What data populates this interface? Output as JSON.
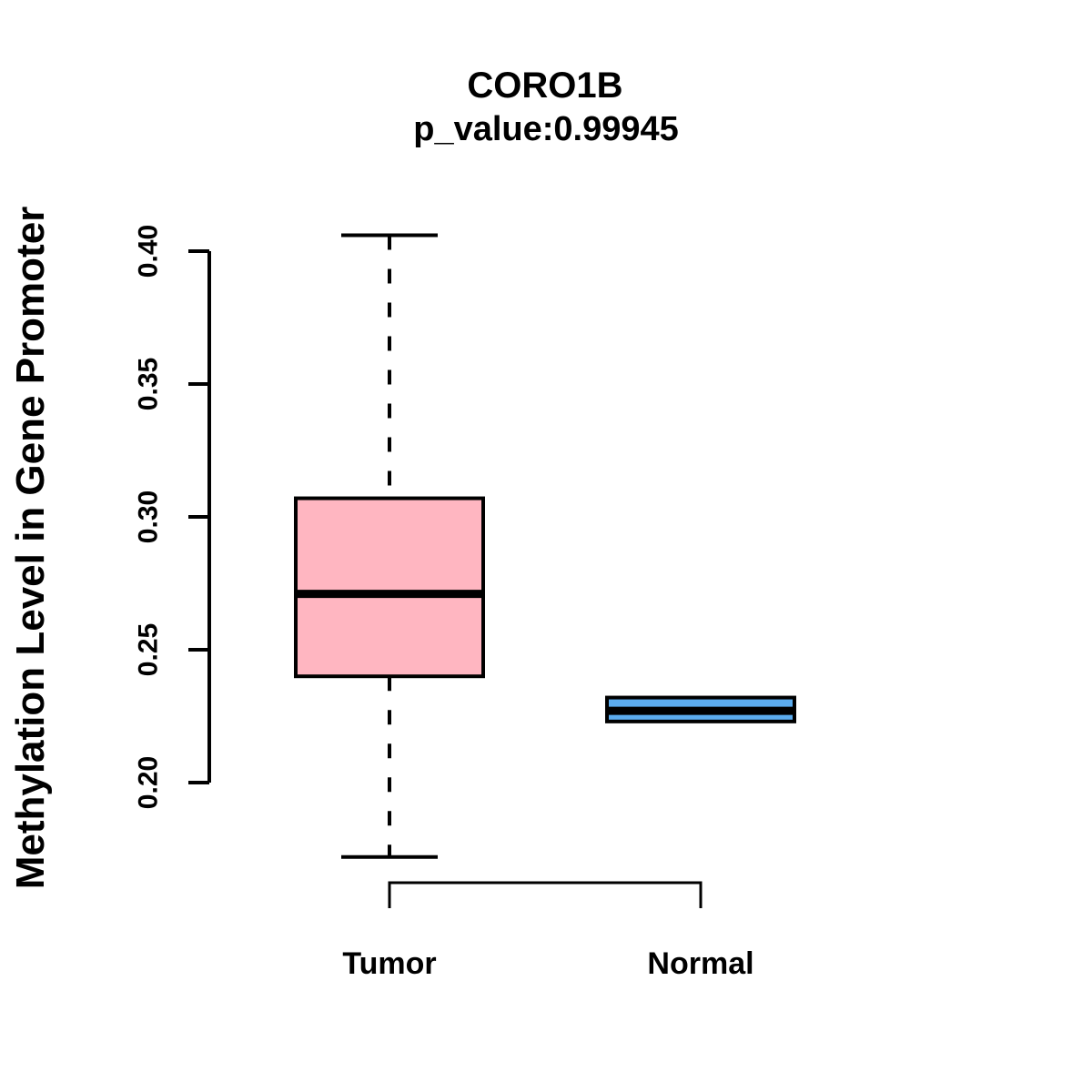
{
  "page": {
    "background_color": "#ffffff",
    "text_color": "#000000"
  },
  "chart_data": {
    "type": "boxplot",
    "title": "CORO1B",
    "subtitle": "p_value:0.99945",
    "p_value": "0.99945",
    "gene": "CORO1B",
    "xlabel": "",
    "ylabel": "Methylation Level in Gene Promoter",
    "ylim": [
      0.2,
      0.4
    ],
    "yticks": [
      0.2,
      0.25,
      0.3,
      0.35,
      0.4
    ],
    "ytick_labels": [
      "0.20",
      "0.25",
      "0.30",
      "0.35",
      "0.40"
    ],
    "grid": false,
    "legend_position": "none",
    "categories": [
      "Tumor",
      "Normal"
    ],
    "series": [
      {
        "name": "Tumor",
        "fill_color": "#FFB6C1",
        "min": 0.172,
        "q1": 0.24,
        "median": 0.271,
        "q3": 0.307,
        "max": 0.406
      },
      {
        "name": "Normal",
        "fill_color": "#5CACEE",
        "min": 0.223,
        "q1": 0.223,
        "median": 0.227,
        "q3": 0.232,
        "max": 0.232
      }
    ],
    "style": {
      "box_border_color": "#000000",
      "median_color": "#000000",
      "axis_color": "#000000",
      "whisker_style": "dashed"
    }
  }
}
